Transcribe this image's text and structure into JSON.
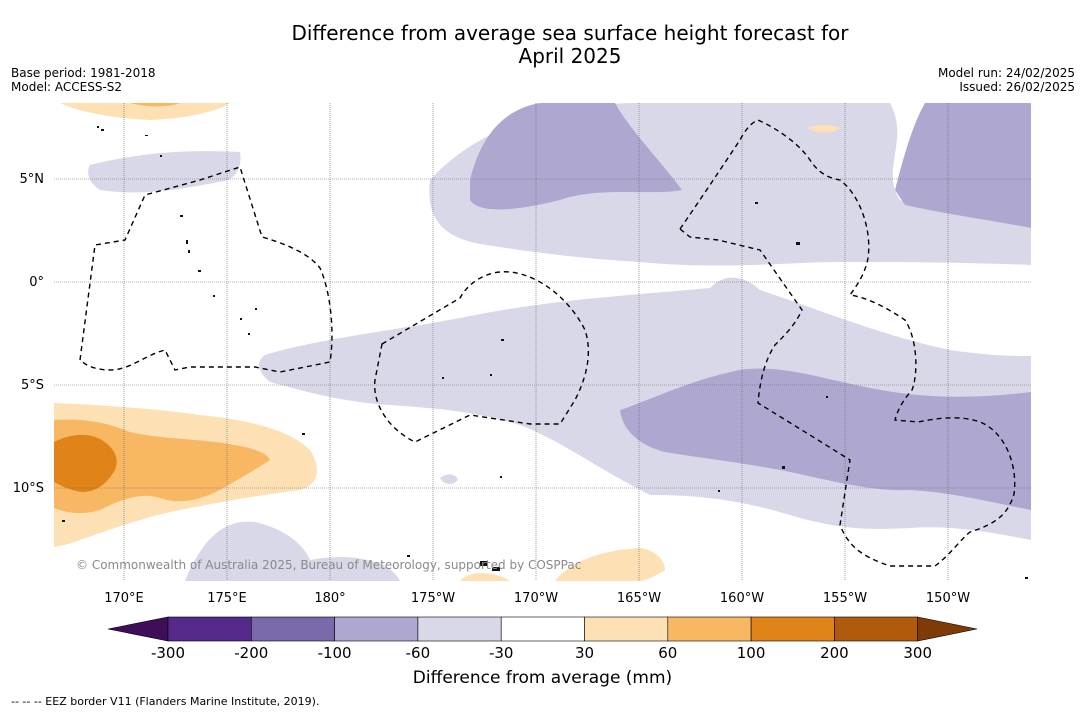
{
  "title_line1": "Difference from average sea surface height forecast for",
  "title_line2": "April 2025",
  "base_period": "Base period: 1981-2018",
  "model": "Model: ACCESS-S2",
  "model_run": "Model run: 24/02/2025",
  "issued": "Issued: 26/02/2025",
  "copyright": "© Commonwealth of Australia 2025, Bureau of Meteorology, supported by COSPPac",
  "lon_ticks": [
    "170°E",
    "175°E",
    "180°",
    "175°W",
    "170°W",
    "165°W",
    "160°W",
    "155°W",
    "150°W"
  ],
  "lat_ticks": [
    "5°N",
    "0°",
    "5°S",
    "10°S"
  ],
  "colorbar": {
    "label": "Difference from average (mm)",
    "tick_labels": [
      "-300",
      "-200",
      "-100",
      "-60",
      "-30",
      "30",
      "60",
      "100",
      "200",
      "300"
    ],
    "colors": [
      "#3f0e5b",
      "#54298a",
      "#7a6aab",
      "#aea8d0",
      "#d8d8e9",
      "#ffffff",
      "#fde0b4",
      "#f8b763",
      "#e08419",
      "#b05a0e",
      "#7e3b08"
    ]
  },
  "footer": "--  --  -- EEZ border V11 (Flanders Marine Institute, 2019)."
}
